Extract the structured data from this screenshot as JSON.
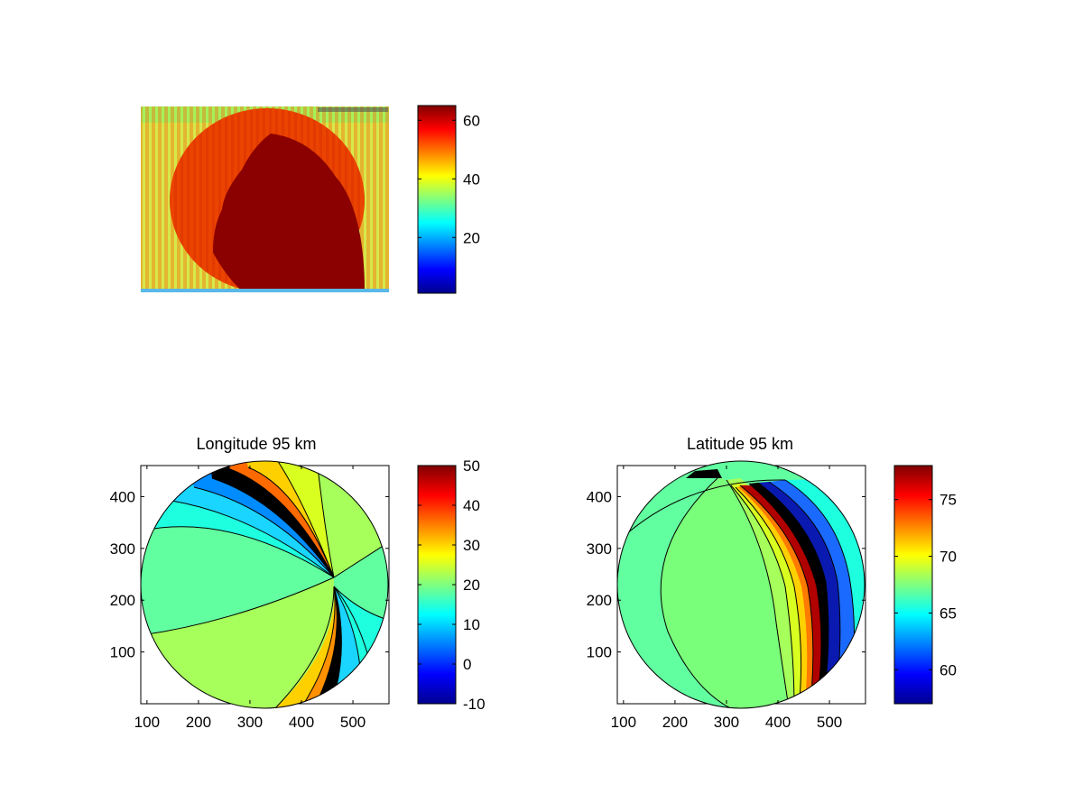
{
  "chart_data": [
    {
      "type": "heatmap",
      "title": "",
      "xlabel": "",
      "ylabel": "",
      "description_source": "raw image panel with colorbar",
      "colorbar": {
        "range": [
          1,
          65
        ],
        "ticks": [
          20,
          40,
          60
        ]
      },
      "colormap": "jet",
      "dominant_levels": {
        "background": 42,
        "disk": 55,
        "dark_region": 65
      }
    },
    {
      "type": "heatmap",
      "title": "Longitude 95 km",
      "xlabel": "",
      "ylabel": "",
      "xlim": [
        88,
        570
      ],
      "ylim": [
        0,
        460
      ],
      "xticks": [
        100,
        200,
        300,
        400,
        500
      ],
      "yticks": [
        100,
        200,
        300,
        400
      ],
      "colorbar": {
        "range": [
          -10,
          50
        ],
        "ticks": [
          -10,
          0,
          10,
          20,
          30,
          40,
          50
        ]
      },
      "colormap": "jet",
      "disk": {
        "center": [
          330,
          230
        ],
        "radius": 240
      },
      "contour_levels": [
        16,
        20,
        23,
        26,
        30,
        35,
        40,
        50,
        0,
        5,
        10,
        13
      ]
    },
    {
      "type": "heatmap",
      "title": "Latitude 95 km",
      "xlabel": "",
      "ylabel": "",
      "xlim": [
        88,
        570
      ],
      "ylim": [
        0,
        460
      ],
      "xticks": [
        100,
        200,
        300,
        400,
        500
      ],
      "yticks": [
        100,
        200,
        300,
        400
      ],
      "colorbar": {
        "range": [
          57,
          78
        ],
        "ticks": [
          60,
          65,
          70,
          75
        ]
      },
      "colormap": "jet",
      "disk": {
        "center": [
          330,
          230
        ],
        "radius": 240
      },
      "contour_levels": [
        66,
        67.5,
        68.5,
        69.5,
        70.5,
        72,
        74,
        77,
        60,
        62,
        63.5,
        65
      ]
    }
  ]
}
